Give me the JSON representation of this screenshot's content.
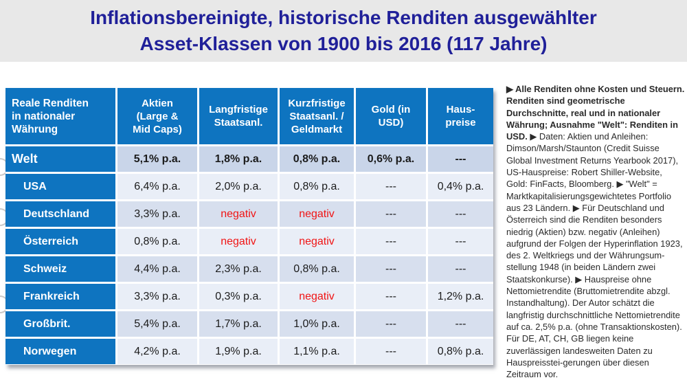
{
  "title": {
    "line1": "Inflationsbereinigte, historische Renditen ausgewählter",
    "line2": "Asset-Klassen von 1900 bis 2016 (117 Jahre)"
  },
  "chart_data": {
    "type": "table",
    "columns": [
      "Reale Renditen\nin nationaler\nWährung",
      "Aktien\n(Large &\nMid Caps)",
      "Langfristige\nStaatsanl.",
      "Kurzfristige\nStaatsanl. /\nGeldmarkt",
      "Gold (in\nUSD)",
      "Haus-\npreise"
    ],
    "rows": [
      {
        "label": "Welt",
        "values": [
          "5,1% p.a.",
          "1,8% p.a.",
          "0,8% p.a.",
          "0,6% p.a.",
          "---"
        ]
      },
      {
        "label": "USA",
        "values": [
          "6,4% p.a.",
          "2,0% p.a.",
          "0,8% p.a.",
          "---",
          "0,4% p.a."
        ]
      },
      {
        "label": "Deutschland",
        "values": [
          "3,3% p.a.",
          "negativ",
          "negativ",
          "---",
          "---"
        ]
      },
      {
        "label": "Österreich",
        "values": [
          "0,8% p.a.",
          "negativ",
          "negativ",
          "---",
          "---"
        ]
      },
      {
        "label": "Schweiz",
        "values": [
          "4,4% p.a.",
          "2,3% p.a.",
          "0,8% p.a.",
          "---",
          "---"
        ]
      },
      {
        "label": "Frankreich",
        "values": [
          "3,3% p.a.",
          "0,3% p.a.",
          "negativ",
          "---",
          "1,2% p.a."
        ]
      },
      {
        "label": "Großbrit.",
        "values": [
          "5,4% p.a.",
          "1,7% p.a.",
          "1,0% p.a.",
          "---",
          "---"
        ]
      },
      {
        "label": "Norwegen",
        "values": [
          "4,2% p.a.",
          "1,9% p.a.",
          "1,1% p.a.",
          "---",
          "0,8% p.a."
        ]
      }
    ]
  },
  "notes": {
    "bold_intro": "▶ Alle Renditen ohne Kosten und Steuern. Renditen sind geometrische Durchschnitte, real und in nationaler Währung; Ausnahme \"Welt\": Renditen in USD. ",
    "body": "▶ Daten: Aktien und Anleihen: Dimson/Marsh/Staunton (Credit Suisse Global Investment Returns Yearbook 2017), US-Hauspreise: Robert Shiller-Website, Gold: FinFacts, Bloomberg. ▶ \"Welt\" = Marktkapitalisierungsgewichtetes Portfolio aus 23 Ländern. ▶ Für Deutschland und Österreich sind die Renditen besonders niedrig (Aktien) bzw. negativ (Anleihen) aufgrund der Folgen der Hyperinflation 1923, des 2. Weltkriegs und der Währungsum-stellung 1948 (in beiden Ländern zwei Staatskonkurse). ▶ Hauspreise ohne Nettomietrendite (Bruttomietrendite abzgl. Instandhaltung). Der Autor schätzt die langfristig durchschnittliche Nettomietrendite auf ca. 2,5% p.a. (ohne Transaktionskosten). Für DE, AT, CH, GB liegen keine zuverlässigen landesweiten Daten zu Hauspreisstei-gerungen über diesen Zeitraum vor."
  },
  "colors": {
    "accent_blue": "#0e74c0",
    "title_navy": "#202099",
    "negative_red": "#f01414",
    "welt_row_bg": "#c9d5e9",
    "band_light": "#e9eef7",
    "band_medium": "#d7dfee",
    "title_band_gray": "#e8e8e8"
  }
}
